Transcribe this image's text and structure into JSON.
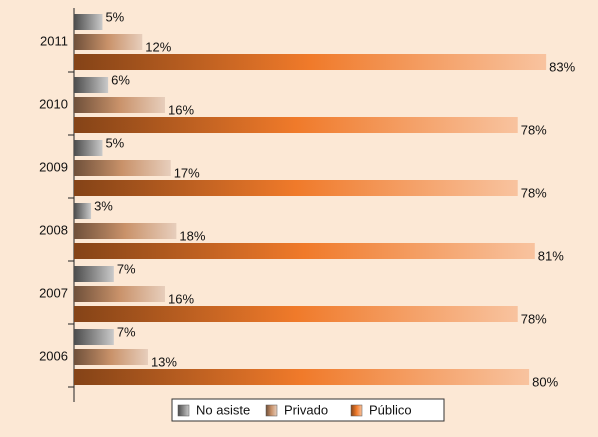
{
  "chart_data": {
    "type": "bar",
    "orientation": "horizontal",
    "categories": [
      "2011",
      "2010",
      "2009",
      "2008",
      "2007",
      "2006"
    ],
    "series": [
      {
        "name": "No asiste",
        "color": "#8a8a8a",
        "values": [
          5,
          6,
          5,
          3,
          7,
          7
        ],
        "value_labels": [
          "5%",
          "6%",
          "5%",
          "3%",
          "7%",
          "7%"
        ]
      },
      {
        "name": "Privado",
        "color": "#c9926a",
        "values": [
          12,
          16,
          17,
          18,
          16,
          13
        ],
        "value_labels": [
          "12%",
          "16%",
          "17%",
          "18%",
          "16%",
          "13%"
        ]
      },
      {
        "name": "Público",
        "color": "#f07a2a",
        "values": [
          83,
          78,
          78,
          81,
          78,
          80
        ],
        "value_labels": [
          "83%",
          "78%",
          "78%",
          "81%",
          "78%",
          "80%"
        ]
      }
    ],
    "xlim": [
      0,
      90
    ],
    "legend": "bottom"
  }
}
